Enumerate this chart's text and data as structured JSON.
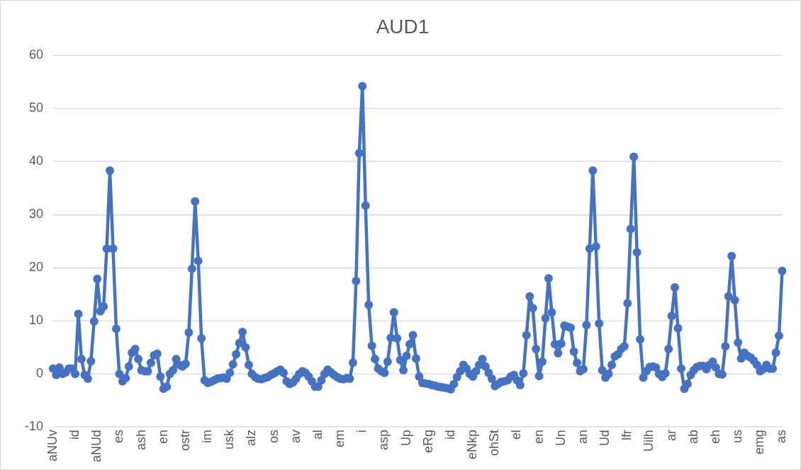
{
  "chart_data": {
    "type": "line",
    "title": "AUD1",
    "categories": [
      "aNUv",
      null,
      null,
      null,
      null,
      null,
      null,
      "id",
      null,
      null,
      null,
      null,
      null,
      null,
      "aNUd",
      null,
      null,
      null,
      null,
      null,
      null,
      "es",
      null,
      null,
      null,
      null,
      null,
      null,
      "ash",
      null,
      null,
      null,
      null,
      null,
      null,
      "en",
      null,
      null,
      null,
      null,
      null,
      null,
      "ostr",
      null,
      null,
      null,
      null,
      null,
      null,
      "im",
      null,
      null,
      null,
      null,
      null,
      null,
      "usk",
      null,
      null,
      null,
      null,
      null,
      null,
      "alz",
      null,
      null,
      null,
      null,
      null,
      null,
      "os",
      null,
      null,
      null,
      null,
      null,
      null,
      "av",
      null,
      null,
      null,
      null,
      null,
      null,
      "al",
      null,
      null,
      null,
      null,
      null,
      null,
      "em",
      null,
      null,
      null,
      null,
      null,
      null,
      "i",
      null,
      null,
      null,
      null,
      null,
      null,
      "asp",
      null,
      null,
      null,
      null,
      null,
      null,
      "Up",
      null,
      null,
      null,
      null,
      null,
      null,
      "eRg",
      null,
      null,
      null,
      null,
      null,
      null,
      "id",
      null,
      null,
      null,
      null,
      null,
      null,
      "eNkp",
      null,
      null,
      null,
      null,
      null,
      null,
      "ohSt",
      null,
      null,
      null,
      null,
      null,
      null,
      "el",
      null,
      null,
      null,
      null,
      null,
      null,
      "en",
      null,
      null,
      null,
      null,
      null,
      null,
      "Un",
      null,
      null,
      null,
      null,
      null,
      null,
      "an",
      null,
      null,
      null,
      null,
      null,
      null,
      "Ud",
      null,
      null,
      null,
      null,
      null,
      null,
      "lfr",
      null,
      null,
      null,
      null,
      null,
      null,
      "Uilh",
      null,
      null,
      null,
      null,
      null,
      null,
      "ar",
      null,
      null,
      null,
      null,
      null,
      null,
      "ab",
      null,
      null,
      null,
      null,
      null,
      null,
      "eh",
      null,
      null,
      null,
      null,
      null,
      null,
      "us",
      null,
      null,
      null,
      null,
      null,
      null,
      "emg",
      null,
      null,
      null,
      null,
      null,
      null,
      "as"
    ],
    "series": [
      {
        "color": "#4472c4",
        "values": [
          1.0,
          -0.2,
          1.2,
          0.0,
          0.3,
          1.0,
          1.0,
          0.0,
          11.3,
          2.8,
          -0.2,
          -0.9,
          2.4,
          9.9,
          17.9,
          11.8,
          12.7,
          23.6,
          38.3,
          23.6,
          8.5,
          0.0,
          -1.4,
          -0.8,
          1.4,
          4.0,
          4.7,
          2.8,
          0.7,
          0.5,
          0.5,
          2.1,
          3.5,
          3.8,
          -0.5,
          -2.8,
          -2.4,
          0.0,
          0.7,
          2.8,
          1.7,
          1.4,
          1.9,
          7.8,
          19.8,
          32.5,
          21.3,
          6.7,
          -1.2,
          -1.7,
          -1.5,
          -1.2,
          -0.9,
          -0.8,
          -0.7,
          -0.9,
          0.2,
          1.8,
          3.7,
          5.8,
          7.9,
          5.0,
          1.7,
          0.0,
          -0.6,
          -0.9,
          -1.0,
          -0.8,
          -0.6,
          -0.2,
          0.1,
          0.5,
          0.8,
          0.2,
          -1.4,
          -1.9,
          -1.6,
          -0.9,
          0.0,
          0.5,
          0.2,
          -0.5,
          -1.4,
          -2.4,
          -2.4,
          -1.2,
          0.0,
          0.8,
          0.3,
          -0.2,
          -0.6,
          -0.9,
          -1.0,
          -0.8,
          -0.9,
          2.1,
          17.5,
          41.6,
          54.2,
          31.7,
          13.0,
          5.3,
          2.8,
          1.0,
          0.5,
          0.2,
          2.3,
          6.8,
          11.6,
          6.7,
          2.6,
          0.7,
          3.4,
          5.6,
          7.3,
          2.9,
          -0.5,
          -1.7,
          -1.8,
          -1.9,
          -2.1,
          -2.2,
          -2.4,
          -2.5,
          -2.6,
          -2.7,
          -2.9,
          -1.9,
          -0.6,
          0.5,
          1.7,
          1.0,
          0.0,
          -0.5,
          0.5,
          1.7,
          2.8,
          1.4,
          0.2,
          -0.9,
          -2.3,
          -1.9,
          -1.5,
          -1.4,
          -1.2,
          -0.5,
          -0.2,
          -1.2,
          -2.1,
          0.1,
          7.3,
          14.6,
          12.4,
          4.7,
          -0.4,
          2.3,
          10.5,
          18.0,
          11.6,
          5.6,
          3.9,
          5.7,
          9.1,
          8.9,
          8.7,
          4.2,
          2.1,
          0.5,
          0.9,
          9.2,
          23.6,
          38.3,
          24.0,
          9.5,
          0.7,
          -0.7,
          0.0,
          1.7,
          3.3,
          3.7,
          4.7,
          5.2,
          13.3,
          27.3,
          40.9,
          22.9,
          6.5,
          -0.7,
          0.5,
          1.3,
          1.4,
          1.2,
          0.0,
          -0.6,
          0.1,
          4.7,
          10.9,
          16.3,
          8.6,
          1.0,
          -2.8,
          -1.9,
          -0.2,
          0.7,
          1.3,
          1.5,
          1.5,
          0.9,
          1.7,
          2.3,
          1.2,
          0.0,
          -0.1,
          5.2,
          14.6,
          22.2,
          13.9,
          5.9,
          2.9,
          4.0,
          3.4,
          3.1,
          2.5,
          1.7,
          0.5,
          0.9,
          1.7,
          1.0,
          1.0,
          4.0,
          7.2,
          19.4
        ]
      }
    ],
    "ylim": [
      -10,
      60
    ],
    "yticks": [
      -10,
      0,
      10,
      20,
      30,
      40,
      50,
      60
    ],
    "grid": "y",
    "legend": false,
    "marker": "circle",
    "line_style": "solid"
  }
}
